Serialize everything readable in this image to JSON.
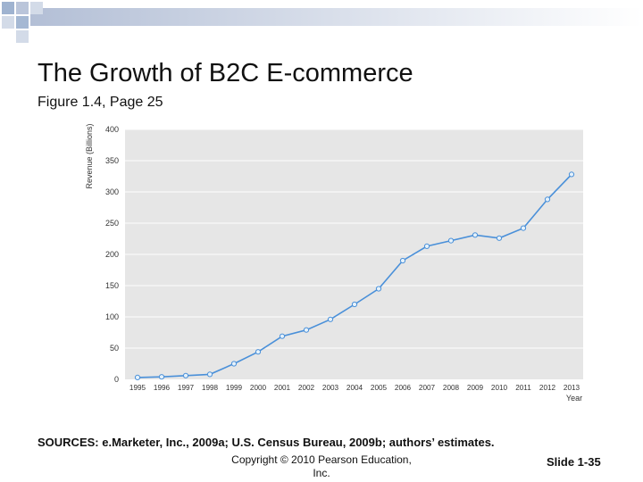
{
  "slide": {
    "title": "The Growth of B2C E-commerce",
    "subtitle": "Figure 1.4, Page 25",
    "sources": "SOURCES: e.Marketer, Inc., 2009a; U.S. Census Bureau, 2009b; authors’ estimates.",
    "copyright_line1": "Copyright © 2010 Pearson Education,",
    "copyright_line2": "Inc.",
    "slide_number": "Slide 1-35"
  },
  "colors": {
    "line": "#4a90d9",
    "marker_fill": "#e6f2fb",
    "plot_bg": "#e6e6e6",
    "grid": "#ffffff",
    "deco_square": "#8ea6c8",
    "deco_bar": "#b3bfd6"
  },
  "chart_data": {
    "type": "line",
    "title": "",
    "xlabel": "Year",
    "ylabel": "Revenue (Billions)",
    "categories": [
      "1995",
      "1996",
      "1997",
      "1998",
      "1999",
      "2000",
      "2001",
      "2002",
      "2003",
      "2004",
      "2005",
      "2006",
      "2007",
      "2008",
      "2009",
      "2010",
      "2011",
      "2012",
      "2013"
    ],
    "values": [
      3,
      4,
      6,
      8,
      25,
      44,
      69,
      79,
      96,
      120,
      145,
      190,
      213,
      222,
      231,
      226,
      242,
      288,
      328
    ],
    "ylim": [
      0,
      400
    ],
    "yticks": [
      0,
      50,
      100,
      150,
      200,
      250,
      300,
      350,
      400
    ],
    "grid": true
  }
}
